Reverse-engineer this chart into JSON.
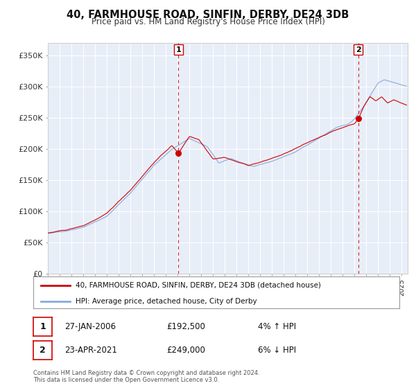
{
  "title": "40, FARMHOUSE ROAD, SINFIN, DERBY, DE24 3DB",
  "subtitle": "Price paid vs. HM Land Registry's House Price Index (HPI)",
  "legend_line1": "40, FARMHOUSE ROAD, SINFIN, DERBY, DE24 3DB (detached house)",
  "legend_line2": "HPI: Average price, detached house, City of Derby",
  "marker1_date": "27-JAN-2006",
  "marker1_price": "£192,500",
  "marker1_hpi": "4% ↑ HPI",
  "marker2_date": "23-APR-2021",
  "marker2_price": "£249,000",
  "marker2_hpi": "6% ↓ HPI",
  "footer1": "Contains HM Land Registry data © Crown copyright and database right 2024.",
  "footer2": "This data is licensed under the Open Government Licence v3.0.",
  "price_color": "#cc0000",
  "hpi_color": "#88aadd",
  "bg_color": "#e8eef8",
  "ylim": [
    0,
    370000
  ],
  "yticks": [
    0,
    50000,
    100000,
    150000,
    200000,
    250000,
    300000,
    350000
  ],
  "ytick_labels": [
    "£0",
    "£50K",
    "£100K",
    "£150K",
    "£200K",
    "£250K",
    "£300K",
    "£350K"
  ],
  "xmin": 1995.0,
  "xmax": 2025.5,
  "marker1_x": 2006.07,
  "marker2_x": 2021.31,
  "marker1_y": 192500,
  "marker2_y": 249000,
  "label_1": "1",
  "label_2": "2"
}
